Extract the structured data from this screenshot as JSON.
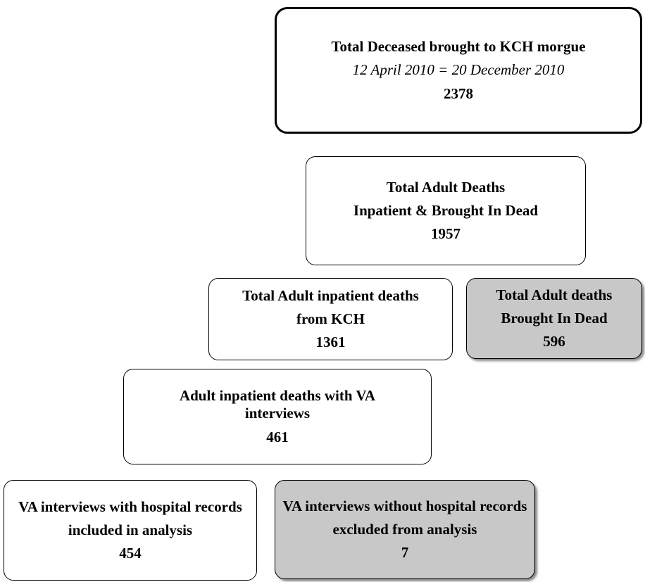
{
  "nodes": [
    {
      "lines": [
        "Total Deceased brought to KCH morgue",
        "12 April 2010 = 20 December 2010"
      ],
      "count": 2378
    },
    {
      "lines": [
        "Total Adult Deaths",
        "Inpatient & Brought In Dead"
      ],
      "count": 1957
    },
    {
      "lines": [
        "Total Adult inpatient deaths",
        "from KCH"
      ],
      "count": 1361
    },
    {
      "lines": [
        "Total Adult deaths",
        "Brought In Dead"
      ],
      "count": 596
    },
    {
      "lines": [
        "Adult inpatient deaths with VA interviews"
      ],
      "count": 461
    },
    {
      "lines": [
        "VA interviews with hospital records",
        "included in analysis"
      ],
      "count": 454
    },
    {
      "lines": [
        "VA interviews without hospital records",
        "excluded from analysis"
      ],
      "count": 7
    }
  ]
}
